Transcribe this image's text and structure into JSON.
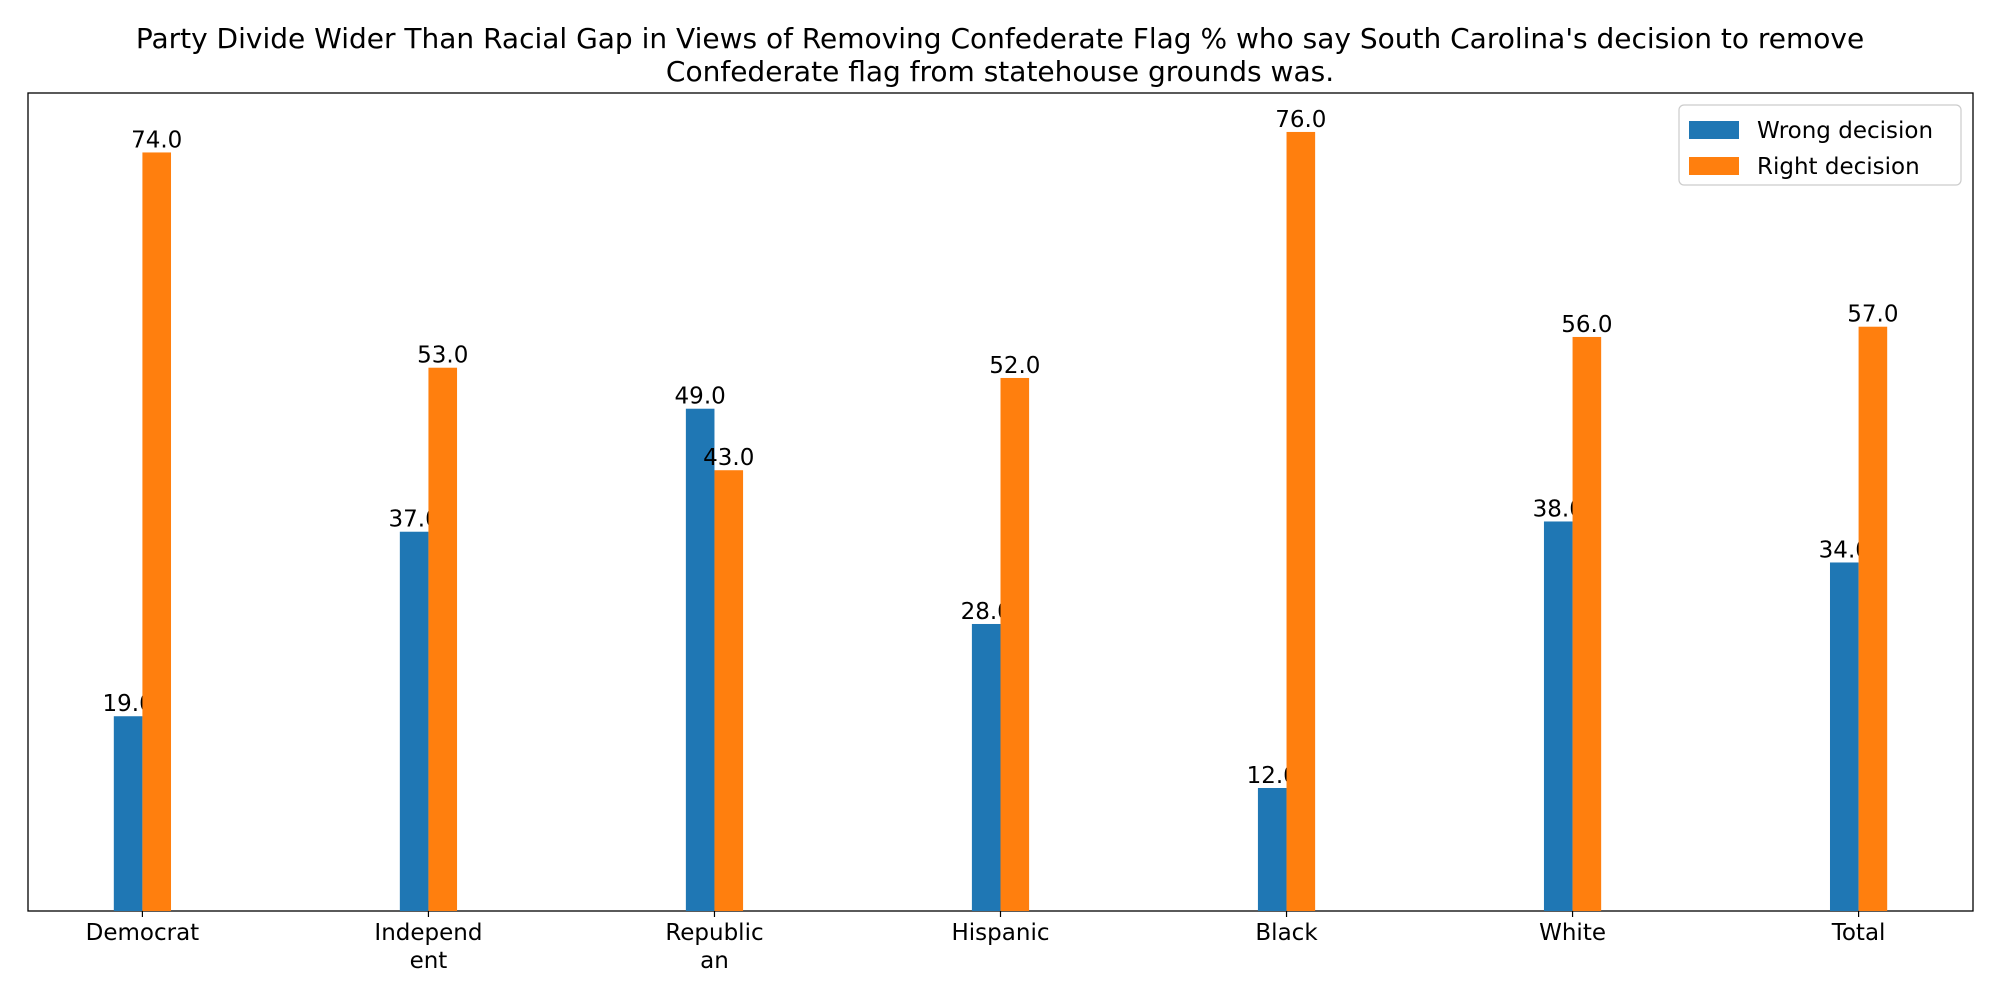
{
  "chart_data": {
    "type": "bar",
    "title": "Party Divide Wider Than Racial Gap in Views of Removing Confederate Flag % who say South Carolina's decision to remove\nConfederate flag from statehouse grounds was.",
    "categories": [
      "Democrat",
      "Independ\nent",
      "Republic\nan",
      "Hispanic",
      "Black",
      "White",
      "Total"
    ],
    "series": [
      {
        "name": "Wrong decision",
        "color": "#1f77b4",
        "values": [
          19,
          37,
          49,
          28,
          12,
          38,
          34
        ],
        "value_labels": [
          "19.0",
          "37.0",
          "49.0",
          "28.0",
          "12.0",
          "38.0",
          "34.0"
        ]
      },
      {
        "name": "Right decision",
        "color": "#ff7f0e",
        "values": [
          74,
          53,
          43,
          52,
          76,
          56,
          57
        ],
        "value_labels": [
          "74.0",
          "53.0",
          "43.0",
          "52.0",
          "76.0",
          "56.0",
          "57.0"
        ]
      }
    ],
    "ylim": [
      0,
      79.8
    ],
    "legend": "upper right"
  }
}
